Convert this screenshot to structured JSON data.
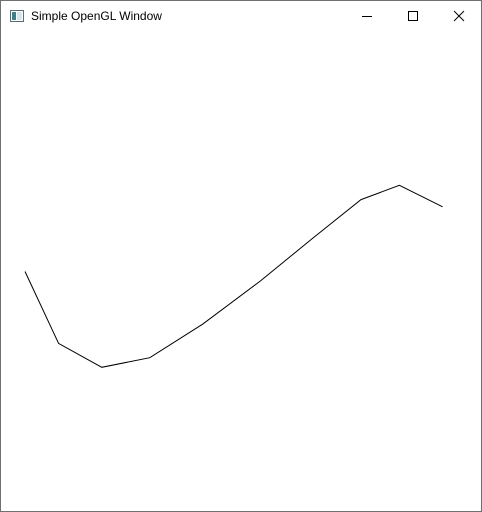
{
  "window": {
    "title": "Simple OpenGL Window",
    "icon": "app-window-icon",
    "controls": {
      "minimize_icon": "minimize-icon",
      "maximize_icon": "maximize-icon",
      "close_icon": "close-icon"
    }
  },
  "canvas": {
    "background": "#ffffff",
    "line_color": "#000000",
    "polyline": [
      [
        -0.9,
        0.0
      ],
      [
        -0.76,
        -0.3
      ],
      [
        -0.58,
        -0.4
      ],
      [
        -0.38,
        -0.36
      ],
      [
        -0.16,
        -0.22
      ],
      [
        0.08,
        -0.04
      ],
      [
        0.3,
        0.14
      ],
      [
        0.5,
        0.3
      ],
      [
        0.66,
        0.36
      ],
      [
        0.84,
        0.27
      ]
    ]
  }
}
